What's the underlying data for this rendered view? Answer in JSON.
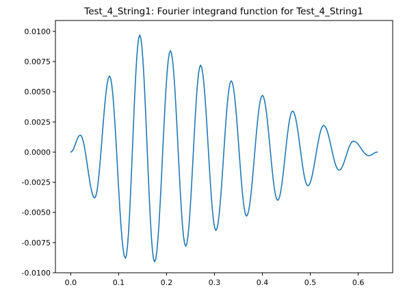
{
  "chart_data": {
    "type": "line",
    "title": "Test_4_String1: Fourier integrand function for Test_4_String1",
    "xlabel": "",
    "ylabel": "",
    "xlim": [
      -0.032,
      0.672
    ],
    "ylim": [
      -0.01,
      0.0109
    ],
    "xticks": [
      0.0,
      0.1,
      0.2,
      0.3,
      0.4,
      0.5,
      0.6
    ],
    "xtick_labels": [
      "0.0",
      "0.1",
      "0.2",
      "0.3",
      "0.4",
      "0.5",
      "0.6"
    ],
    "yticks": [
      -0.01,
      -0.0075,
      -0.005,
      -0.0025,
      0.0,
      0.0025,
      0.005,
      0.0075,
      0.01
    ],
    "ytick_labels": [
      "-0.0100",
      "-0.0075",
      "-0.0050",
      "-0.0025",
      "0.0000",
      "0.0025",
      "0.0050",
      "0.0075",
      "0.0100"
    ],
    "grid": false,
    "colors": {
      "line": "#1f77b4"
    },
    "series": [
      {
        "x": [
          0.0,
          0.02,
          0.05,
          0.081,
          0.114,
          0.144,
          0.175,
          0.208,
          0.24,
          0.271,
          0.303,
          0.335,
          0.367,
          0.4,
          0.432,
          0.463,
          0.495,
          0.528,
          0.56,
          0.59,
          0.622,
          0.64
        ],
        "y": [
          0.0,
          0.0014,
          -0.0038,
          0.0063,
          -0.0088,
          0.0097,
          -0.0091,
          0.0084,
          -0.0078,
          0.0072,
          -0.0065,
          0.0059,
          -0.0053,
          0.0047,
          -0.004,
          0.0034,
          -0.0028,
          0.0022,
          -0.0015,
          0.0009,
          -0.0003,
          0.0
        ]
      }
    ]
  }
}
